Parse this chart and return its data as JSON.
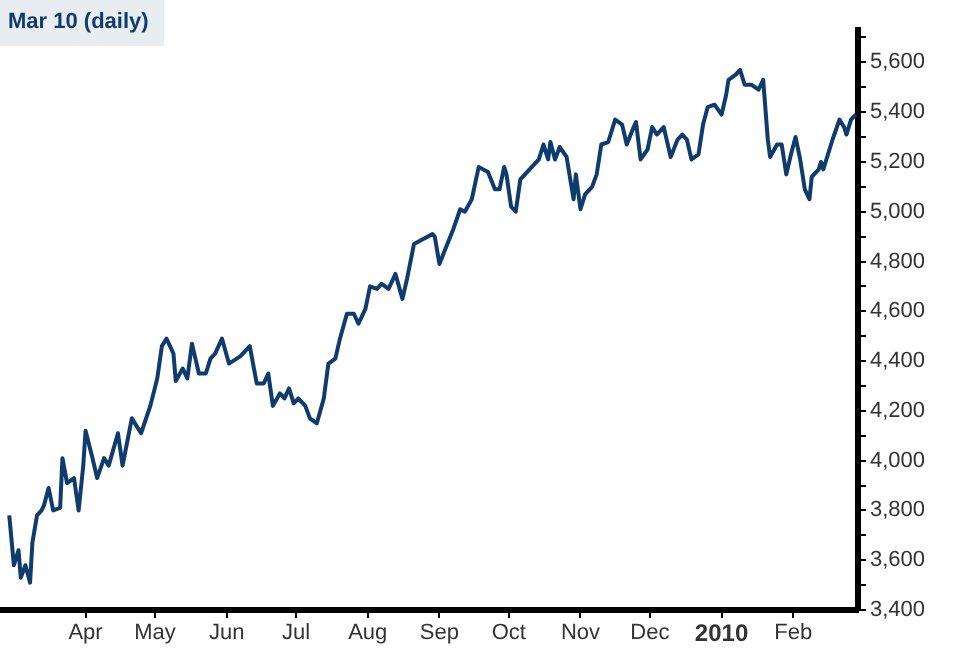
{
  "chart_data": {
    "type": "line",
    "title": "Mar 10 (daily)",
    "xlim": [
      "2009-02-23",
      "2010-03-01"
    ],
    "xticks": [
      {
        "value": "2009-04-01",
        "label": "Apr"
      },
      {
        "value": "2009-05-01",
        "label": "May"
      },
      {
        "value": "2009-06-01",
        "label": "Jun"
      },
      {
        "value": "2009-07-01",
        "label": "Jul"
      },
      {
        "value": "2009-08-01",
        "label": "Aug"
      },
      {
        "value": "2009-09-01",
        "label": "Sep"
      },
      {
        "value": "2009-10-01",
        "label": "Oct"
      },
      {
        "value": "2009-11-01",
        "label": "Nov"
      },
      {
        "value": "2009-12-01",
        "label": "Dec"
      },
      {
        "value": "2010-01-01",
        "label": "2010"
      },
      {
        "value": "2010-02-01",
        "label": "Feb"
      }
    ],
    "ylim": [
      3400,
      5730
    ],
    "yticks": [
      {
        "value": 3400,
        "label": "3,400"
      },
      {
        "value": 3500,
        "label": null
      },
      {
        "value": 3600,
        "label": "3,600"
      },
      {
        "value": 3700,
        "label": null
      },
      {
        "value": 3800,
        "label": "3,800"
      },
      {
        "value": 3900,
        "label": null
      },
      {
        "value": 4000,
        "label": "4,000"
      },
      {
        "value": 4100,
        "label": null
      },
      {
        "value": 4200,
        "label": "4,200"
      },
      {
        "value": 4300,
        "label": null
      },
      {
        "value": 4400,
        "label": "4,400"
      },
      {
        "value": 4500,
        "label": null
      },
      {
        "value": 4600,
        "label": "4,600"
      },
      {
        "value": 4700,
        "label": null
      },
      {
        "value": 4800,
        "label": "4,800"
      },
      {
        "value": 4900,
        "label": null
      },
      {
        "value": 5000,
        "label": "5,000"
      },
      {
        "value": 5100,
        "label": null
      },
      {
        "value": 5200,
        "label": "5,200"
      },
      {
        "value": 5300,
        "label": null
      },
      {
        "value": 5400,
        "label": "5,400"
      },
      {
        "value": 5500,
        "label": null
      },
      {
        "value": 5600,
        "label": "5,600"
      },
      {
        "value": 5700,
        "label": null
      }
    ],
    "marker": "none",
    "line_style": "solid",
    "series": [
      {
        "color": "#0f3b6e",
        "x": [
          "2009-02-27",
          "2009-03-01",
          "2009-03-03",
          "2009-03-04",
          "2009-03-06",
          "2009-03-08",
          "2009-03-09",
          "2009-03-11",
          "2009-03-13",
          "2009-03-14",
          "2009-03-16",
          "2009-03-18",
          "2009-03-21",
          "2009-03-22",
          "2009-03-24",
          "2009-03-27",
          "2009-03-29",
          "2009-03-31",
          "2009-04-01",
          "2009-04-04",
          "2009-04-06",
          "2009-04-09",
          "2009-04-11",
          "2009-04-15",
          "2009-04-17",
          "2009-04-21",
          "2009-04-25",
          "2009-04-29",
          "2009-05-02",
          "2009-05-04",
          "2009-05-06",
          "2009-05-09",
          "2009-05-10",
          "2009-05-13",
          "2009-05-15",
          "2009-05-17",
          "2009-05-20",
          "2009-05-23",
          "2009-05-25",
          "2009-05-27",
          "2009-05-30",
          "2009-06-02",
          "2009-06-07",
          "2009-06-11",
          "2009-06-14",
          "2009-06-17",
          "2009-06-19",
          "2009-06-21",
          "2009-06-24",
          "2009-06-26",
          "2009-06-28",
          "2009-06-30",
          "2009-07-02",
          "2009-07-05",
          "2009-07-07",
          "2009-07-10",
          "2009-07-13",
          "2009-07-15",
          "2009-07-18",
          "2009-07-20",
          "2009-07-23",
          "2009-07-26",
          "2009-07-28",
          "2009-07-31",
          "2009-08-02",
          "2009-08-05",
          "2009-08-07",
          "2009-08-10",
          "2009-08-13",
          "2009-08-16",
          "2009-08-18",
          "2009-08-21",
          "2009-08-25",
          "2009-08-29",
          "2009-08-30",
          "2009-09-01",
          "2009-09-04",
          "2009-09-07",
          "2009-09-10",
          "2009-09-12",
          "2009-09-15",
          "2009-09-18",
          "2009-09-22",
          "2009-09-25",
          "2009-09-27",
          "2009-09-29",
          "2009-09-30",
          "2009-10-02",
          "2009-10-04",
          "2009-10-06",
          "2009-10-10",
          "2009-10-14",
          "2009-10-16",
          "2009-10-18",
          "2009-10-19",
          "2009-10-21",
          "2009-10-23",
          "2009-10-26",
          "2009-10-29",
          "2009-10-30",
          "2009-11-01",
          "2009-11-03",
          "2009-11-06",
          "2009-11-08",
          "2009-11-10",
          "2009-11-13",
          "2009-11-16",
          "2009-11-19",
          "2009-11-21",
          "2009-11-24",
          "2009-11-25",
          "2009-11-27",
          "2009-11-30",
          "2009-12-02",
          "2009-12-04",
          "2009-12-07",
          "2009-12-10",
          "2009-12-13",
          "2009-12-15",
          "2009-12-17",
          "2009-12-19",
          "2009-12-22",
          "2009-12-24",
          "2009-12-26",
          "2009-12-29",
          "2010-01-01",
          "2010-01-03",
          "2010-01-04",
          "2010-01-07",
          "2010-01-09",
          "2010-01-11",
          "2010-01-14",
          "2010-01-17",
          "2010-01-19",
          "2010-01-21",
          "2010-01-22",
          "2010-01-25",
          "2010-01-27",
          "2010-01-29",
          "2010-01-31",
          "2010-02-02",
          "2010-02-04",
          "2010-02-06",
          "2010-02-08",
          "2010-02-09",
          "2010-02-12",
          "2010-02-13",
          "2010-02-14",
          "2010-02-18",
          "2010-02-21",
          "2010-02-23",
          "2010-02-24",
          "2010-02-26",
          "2010-02-28"
        ],
        "values": [
          3780,
          3580,
          3640,
          3530,
          3580,
          3510,
          3670,
          3780,
          3800,
          3820,
          3890,
          3800,
          3810,
          4010,
          3910,
          3930,
          3800,
          3980,
          4120,
          4010,
          3930,
          4010,
          3980,
          4110,
          3980,
          4170,
          4110,
          4220,
          4330,
          4460,
          4490,
          4430,
          4320,
          4370,
          4330,
          4470,
          4350,
          4350,
          4410,
          4430,
          4490,
          4390,
          4420,
          4460,
          4310,
          4310,
          4350,
          4220,
          4270,
          4250,
          4290,
          4230,
          4250,
          4220,
          4170,
          4150,
          4250,
          4390,
          4410,
          4490,
          4590,
          4590,
          4550,
          4610,
          4700,
          4690,
          4710,
          4690,
          4750,
          4650,
          4730,
          4870,
          4890,
          4910,
          4900,
          4790,
          4860,
          4930,
          5010,
          5000,
          5050,
          5180,
          5160,
          5090,
          5090,
          5180,
          5150,
          5020,
          5000,
          5130,
          5170,
          5210,
          5270,
          5210,
          5280,
          5210,
          5260,
          5220,
          5050,
          5150,
          5010,
          5070,
          5100,
          5150,
          5270,
          5280,
          5370,
          5350,
          5270,
          5340,
          5360,
          5210,
          5250,
          5340,
          5310,
          5340,
          5220,
          5290,
          5310,
          5290,
          5210,
          5230,
          5350,
          5420,
          5430,
          5390,
          5470,
          5530,
          5550,
          5570,
          5510,
          5510,
          5490,
          5530,
          5290,
          5220,
          5270,
          5270,
          5150,
          5230,
          5300,
          5210,
          5090,
          5050,
          5140,
          5170,
          5200,
          5170,
          5290,
          5370,
          5340,
          5310,
          5370,
          5390
        ]
      }
    ]
  }
}
